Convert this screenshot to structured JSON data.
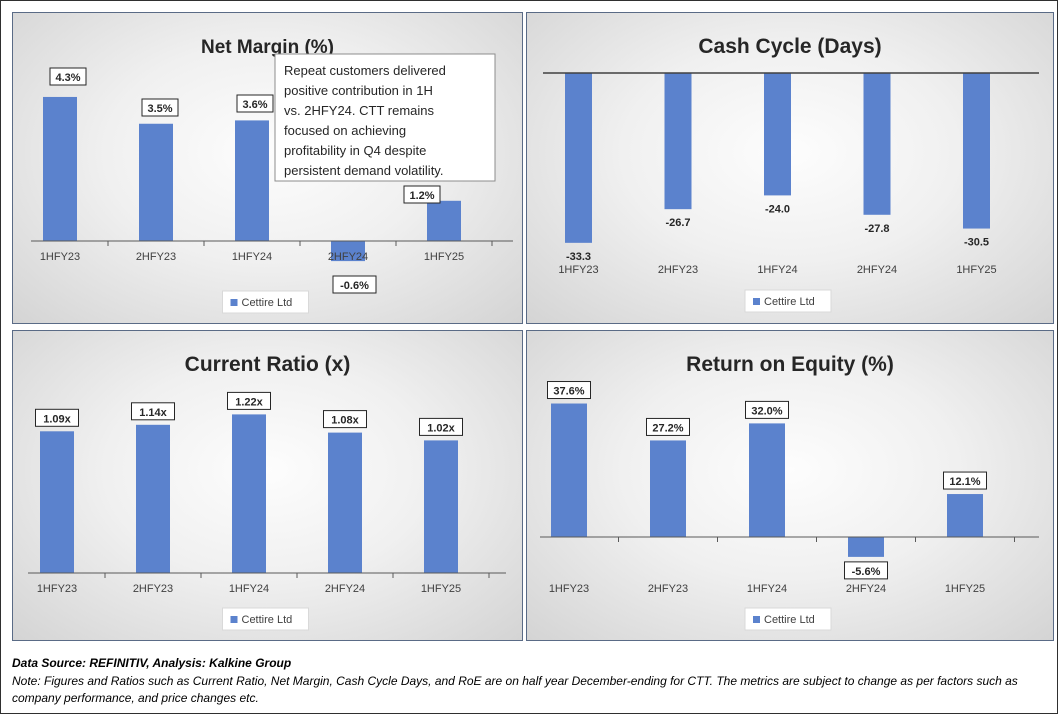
{
  "charts": {
    "net_margin": {
      "legend_marker_color": "#5b82cd"
    }
  },
  "chart_data": [
    {
      "type": "bar",
      "title": "Net Margin (%)",
      "categories": [
        "1HFY23",
        "2HFY23",
        "1HFY24",
        "2HFY24",
        "1HFY25"
      ],
      "series": [
        {
          "name": "Cettire Ltd",
          "values": [
            4.3,
            3.5,
            3.6,
            -0.6,
            1.2
          ]
        }
      ],
      "data_labels": [
        "4.3%",
        "3.5%",
        "3.6%",
        "-0.6%",
        "1.2%"
      ],
      "annotation": "Repeat customers delivered positive contribution in 1H vs. 2HFY24. CTT remains focused on achieving profitability in Q4 despite persistent demand volatility.",
      "legend_position": "bottom",
      "grid": false,
      "color": "#5b82cd"
    },
    {
      "type": "bar",
      "title": "Cash Cycle (Days)",
      "categories": [
        "1HFY23",
        "2HFY23",
        "1HFY24",
        "2HFY24",
        "1HFY25"
      ],
      "series": [
        {
          "name": "Cettire Ltd",
          "values": [
            -33.3,
            -26.7,
            -24.0,
            -27.8,
            -30.5
          ]
        }
      ],
      "data_labels": [
        "-33.3",
        "-26.7",
        "-24.0",
        "-27.8",
        "-30.5"
      ],
      "legend_position": "bottom",
      "grid": false,
      "color": "#5b82cd"
    },
    {
      "type": "bar",
      "title": "Current Ratio (x)",
      "categories": [
        "1HFY23",
        "2HFY23",
        "1HFY24",
        "2HFY24",
        "1HFY25"
      ],
      "series": [
        {
          "name": "Cettire Ltd",
          "values": [
            1.09,
            1.14,
            1.22,
            1.08,
            1.02
          ]
        }
      ],
      "data_labels": [
        "1.09x",
        "1.14x",
        "1.22x",
        "1.08x",
        "1.02x"
      ],
      "legend_position": "bottom",
      "grid": false,
      "color": "#5b82cd"
    },
    {
      "type": "bar",
      "title": "Return on Equity (%)",
      "categories": [
        "1HFY23",
        "2HFY23",
        "1HFY24",
        "2HFY24",
        "1HFY25"
      ],
      "series": [
        {
          "name": "Cettire Ltd",
          "values": [
            37.6,
            27.2,
            32.0,
            -5.6,
            12.1
          ]
        }
      ],
      "data_labels": [
        "37.6%",
        "27.2%",
        "32.0%",
        "-5.6%",
        "12.1%"
      ],
      "legend_position": "bottom",
      "grid": false,
      "color": "#5b82cd"
    }
  ],
  "footer": {
    "source": "Data Source: REFINITIV, Analysis: Kalkine Group",
    "note": "Note: Figures and Ratios such as Current Ratio, Net Margin, Cash Cycle Days, and RoE are on half year December-ending for CTT. The metrics are subject to change as per factors such as company performance, and price changes etc."
  }
}
